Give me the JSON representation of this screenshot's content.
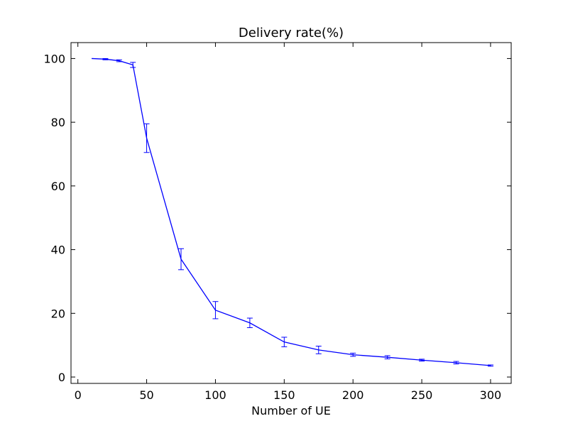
{
  "chart_data": {
    "type": "line",
    "title": "Delivery rate(%)",
    "xlabel": "Number of UE",
    "ylabel": "",
    "xlim": [
      -5,
      315
    ],
    "ylim": [
      -2,
      105
    ],
    "xticks": [
      0,
      50,
      100,
      150,
      200,
      250,
      300
    ],
    "yticks": [
      0,
      20,
      40,
      60,
      80,
      100
    ],
    "grid": false,
    "series_color": "#0000ff",
    "series": [
      {
        "x": [
          10,
          20,
          30,
          40,
          50,
          75,
          100,
          125,
          150,
          175,
          200,
          225,
          250,
          275,
          300
        ],
        "values": [
          100,
          99.8,
          99.3,
          98,
          75,
          37,
          21,
          17,
          11,
          8.5,
          7,
          6.2,
          5.3,
          4.5,
          3.6
        ],
        "errors": [
          0,
          0.2,
          0.3,
          0.8,
          4.5,
          3.3,
          2.7,
          1.5,
          1.5,
          1.2,
          0.5,
          0.5,
          0.3,
          0.4,
          0.2
        ]
      }
    ]
  }
}
